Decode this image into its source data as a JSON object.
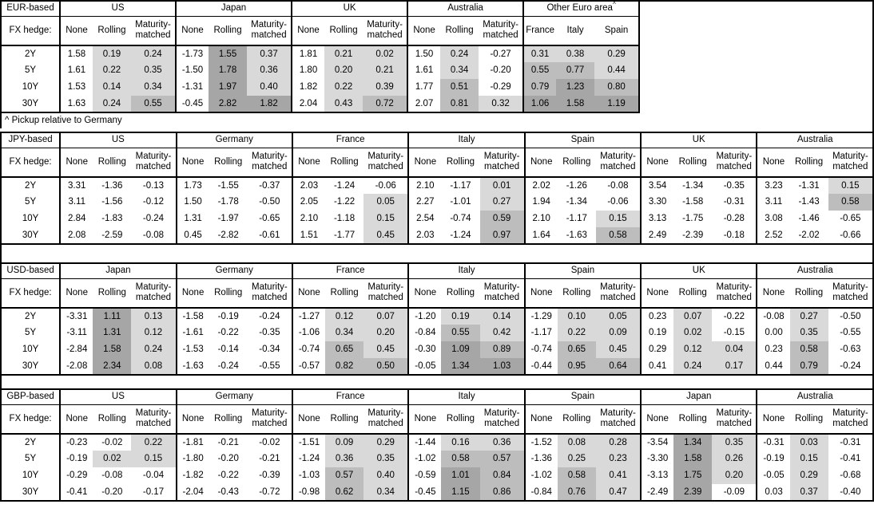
{
  "note": "^ Pickup relative to Germany",
  "fx_hedge_label": "FX hedge:",
  "hedge_cols": [
    "None",
    "Rolling",
    "Maturity-matched"
  ],
  "row_labels": [
    "2Y",
    "5Y",
    "10Y",
    "30Y"
  ],
  "shade_colors": {
    "light": "#d9d9d9",
    "medium": "#bdbdbd",
    "dark": "#a6a6a6"
  },
  "shade_rule": {
    "none_column_never_shaded": true,
    "light_min": 0,
    "medium_min": 0.5,
    "dark_min": 1.0
  },
  "sections": [
    {
      "label": "EUR-based",
      "groups": [
        {
          "name": "US",
          "rows": [
            [
              "1.58",
              "0.19",
              "0.24"
            ],
            [
              "1.61",
              "0.22",
              "0.35"
            ],
            [
              "1.53",
              "0.14",
              "0.34"
            ],
            [
              "1.63",
              "0.24",
              "0.55"
            ]
          ]
        },
        {
          "name": "Japan",
          "rows": [
            [
              "-1.73",
              "1.55",
              "0.37"
            ],
            [
              "-1.50",
              "1.78",
              "0.36"
            ],
            [
              "-1.31",
              "1.97",
              "0.40"
            ],
            [
              "-0.45",
              "2.82",
              "1.82"
            ]
          ]
        },
        {
          "name": "UK",
          "rows": [
            [
              "1.81",
              "0.21",
              "0.02"
            ],
            [
              "1.80",
              "0.20",
              "0.21"
            ],
            [
              "1.82",
              "0.22",
              "0.39"
            ],
            [
              "2.04",
              "0.43",
              "0.72"
            ]
          ]
        },
        {
          "name": "Australia",
          "rows": [
            [
              "1.50",
              "0.24",
              "-0.27"
            ],
            [
              "1.61",
              "0.34",
              "-0.20"
            ],
            [
              "1.77",
              "0.51",
              "-0.29"
            ],
            [
              "2.07",
              "0.81",
              "0.32"
            ]
          ]
        },
        {
          "name": "Other Euro area",
          "sup": "^",
          "cols": [
            "France",
            "Italy",
            "Spain"
          ],
          "rows": [
            [
              "0.31",
              "0.38",
              "0.29"
            ],
            [
              "0.55",
              "0.77",
              "0.44"
            ],
            [
              "0.79",
              "1.23",
              "0.80"
            ],
            [
              "1.06",
              "1.58",
              "1.19"
            ]
          ]
        }
      ]
    },
    {
      "label": "JPY-based",
      "groups": [
        {
          "name": "US",
          "rows": [
            [
              "3.31",
              "-1.36",
              "-0.13"
            ],
            [
              "3.11",
              "-1.56",
              "-0.12"
            ],
            [
              "2.84",
              "-1.83",
              "-0.24"
            ],
            [
              "2.08",
              "-2.59",
              "-0.08"
            ]
          ]
        },
        {
          "name": "Germany",
          "rows": [
            [
              "1.73",
              "-1.55",
              "-0.37"
            ],
            [
              "1.50",
              "-1.78",
              "-0.50"
            ],
            [
              "1.31",
              "-1.97",
              "-0.65"
            ],
            [
              "0.45",
              "-2.82",
              "-0.61"
            ]
          ]
        },
        {
          "name": "France",
          "rows": [
            [
              "2.03",
              "-1.24",
              "-0.06"
            ],
            [
              "2.05",
              "-1.22",
              "0.05"
            ],
            [
              "2.10",
              "-1.18",
              "0.15"
            ],
            [
              "1.51",
              "-1.77",
              "0.45"
            ]
          ]
        },
        {
          "name": "Italy",
          "rows": [
            [
              "2.10",
              "-1.17",
              "0.01"
            ],
            [
              "2.27",
              "-1.01",
              "0.27"
            ],
            [
              "2.54",
              "-0.74",
              "0.59"
            ],
            [
              "2.03",
              "-1.24",
              "0.97"
            ]
          ]
        },
        {
          "name": "Spain",
          "rows": [
            [
              "2.02",
              "-1.26",
              "-0.08"
            ],
            [
              "1.94",
              "-1.34",
              "-0.06"
            ],
            [
              "2.10",
              "-1.17",
              "0.15"
            ],
            [
              "1.64",
              "-1.63",
              "0.58"
            ]
          ]
        },
        {
          "name": "UK",
          "rows": [
            [
              "3.54",
              "-1.34",
              "-0.35"
            ],
            [
              "3.30",
              "-1.58",
              "-0.31"
            ],
            [
              "3.13",
              "-1.75",
              "-0.28"
            ],
            [
              "2.49",
              "-2.39",
              "-0.18"
            ]
          ]
        },
        {
          "name": "Australia",
          "rows": [
            [
              "3.23",
              "-1.31",
              "0.15"
            ],
            [
              "3.11",
              "-1.43",
              "0.58"
            ],
            [
              "3.08",
              "-1.46",
              "-0.65"
            ],
            [
              "2.52",
              "-2.02",
              "-0.66"
            ]
          ]
        }
      ]
    },
    {
      "label": "USD-based",
      "groups": [
        {
          "name": "Japan",
          "rows": [
            [
              "-3.31",
              "1.11",
              "0.13"
            ],
            [
              "-3.11",
              "1.31",
              "0.12"
            ],
            [
              "-2.84",
              "1.58",
              "0.24"
            ],
            [
              "-2.08",
              "2.34",
              "0.08"
            ]
          ]
        },
        {
          "name": "Germany",
          "rows": [
            [
              "-1.58",
              "-0.19",
              "-0.24"
            ],
            [
              "-1.61",
              "-0.22",
              "-0.35"
            ],
            [
              "-1.53",
              "-0.14",
              "-0.34"
            ],
            [
              "-1.63",
              "-0.24",
              "-0.55"
            ]
          ]
        },
        {
          "name": "France",
          "rows": [
            [
              "-1.27",
              "0.12",
              "0.07"
            ],
            [
              "-1.06",
              "0.34",
              "0.20"
            ],
            [
              "-0.74",
              "0.65",
              "0.45"
            ],
            [
              "-0.57",
              "0.82",
              "0.50"
            ]
          ]
        },
        {
          "name": "Italy",
          "rows": [
            [
              "-1.20",
              "0.19",
              "0.14"
            ],
            [
              "-0.84",
              "0.55",
              "0.42"
            ],
            [
              "-0.30",
              "1.09",
              "0.89"
            ],
            [
              "-0.05",
              "1.34",
              "1.03"
            ]
          ]
        },
        {
          "name": "Spain",
          "rows": [
            [
              "-1.29",
              "0.10",
              "0.05"
            ],
            [
              "-1.17",
              "0.22",
              "0.09"
            ],
            [
              "-0.74",
              "0.65",
              "0.45"
            ],
            [
              "-0.44",
              "0.95",
              "0.64"
            ]
          ]
        },
        {
          "name": "UK",
          "rows": [
            [
              "0.23",
              "0.07",
              "-0.22"
            ],
            [
              "0.19",
              "0.02",
              "-0.15"
            ],
            [
              "0.29",
              "0.12",
              "0.04"
            ],
            [
              "0.41",
              "0.24",
              "0.17"
            ]
          ]
        },
        {
          "name": "Australia",
          "rows": [
            [
              "-0.08",
              "0.27",
              "-0.50"
            ],
            [
              "0.00",
              "0.35",
              "-0.55"
            ],
            [
              "0.23",
              "0.58",
              "-0.63"
            ],
            [
              "0.44",
              "0.79",
              "-0.24"
            ]
          ]
        }
      ]
    },
    {
      "label": "GBP-based",
      "groups": [
        {
          "name": "US",
          "rows": [
            [
              "-0.23",
              "-0.02",
              "0.22"
            ],
            [
              "-0.19",
              "0.02",
              "0.15"
            ],
            [
              "-0.29",
              "-0.08",
              "-0.04"
            ],
            [
              "-0.41",
              "-0.20",
              "-0.17"
            ]
          ]
        },
        {
          "name": "Germany",
          "rows": [
            [
              "-1.81",
              "-0.21",
              "-0.02"
            ],
            [
              "-1.80",
              "-0.20",
              "-0.21"
            ],
            [
              "-1.82",
              "-0.22",
              "-0.39"
            ],
            [
              "-2.04",
              "-0.43",
              "-0.72"
            ]
          ]
        },
        {
          "name": "France",
          "rows": [
            [
              "-1.51",
              "0.09",
              "0.29"
            ],
            [
              "-1.24",
              "0.36",
              "0.35"
            ],
            [
              "-1.03",
              "0.57",
              "0.40"
            ],
            [
              "-0.98",
              "0.62",
              "0.34"
            ]
          ]
        },
        {
          "name": "Italy",
          "rows": [
            [
              "-1.44",
              "0.16",
              "0.36"
            ],
            [
              "-1.02",
              "0.58",
              "0.57"
            ],
            [
              "-0.59",
              "1.01",
              "0.84"
            ],
            [
              "-0.45",
              "1.15",
              "0.86"
            ]
          ]
        },
        {
          "name": "Spain",
          "rows": [
            [
              "-1.52",
              "0.08",
              "0.28"
            ],
            [
              "-1.36",
              "0.25",
              "0.23"
            ],
            [
              "-1.02",
              "0.58",
              "0.41"
            ],
            [
              "-0.84",
              "0.76",
              "0.47"
            ]
          ]
        },
        {
          "name": "Japan",
          "rows": [
            [
              "-3.54",
              "1.34",
              "0.35"
            ],
            [
              "-3.30",
              "1.58",
              "0.26"
            ],
            [
              "-3.13",
              "1.75",
              "0.20"
            ],
            [
              "-2.49",
              "2.39",
              "-0.09"
            ]
          ]
        },
        {
          "name": "Australia",
          "rows": [
            [
              "-0.31",
              "0.03",
              "-0.31"
            ],
            [
              "-0.19",
              "0.15",
              "-0.41"
            ],
            [
              "-0.05",
              "0.29",
              "-0.68"
            ],
            [
              "0.03",
              "0.37",
              "-0.40"
            ]
          ]
        }
      ]
    }
  ]
}
